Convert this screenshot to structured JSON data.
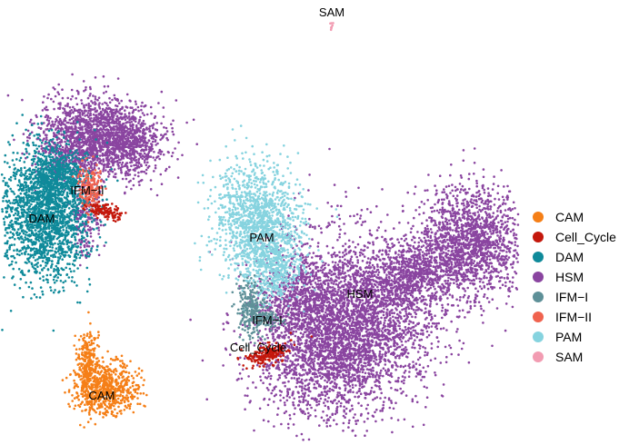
{
  "chart_data": {
    "type": "scatter",
    "title": "",
    "xlabel": "",
    "ylabel": "",
    "axes": "none",
    "grid": false,
    "legend_position": "right",
    "legend": [
      {
        "name": "CAM",
        "color": "#f57f17"
      },
      {
        "name": "Cell_Cycle",
        "color": "#c4180c"
      },
      {
        "name": "DAM",
        "color": "#0f8a9a"
      },
      {
        "name": "HSM",
        "color": "#8a45a0"
      },
      {
        "name": "IFM−I",
        "color": "#5e9098"
      },
      {
        "name": "IFM−II",
        "color": "#f0634f"
      },
      {
        "name": "PAM",
        "color": "#86d3df"
      },
      {
        "name": "SAM",
        "color": "#f29cb2"
      }
    ],
    "cluster_labels": [
      {
        "text": "SAM"
      },
      {
        "text": "IFM−II"
      },
      {
        "text": "DAM"
      },
      {
        "text": "PAM"
      },
      {
        "text": "HSM"
      },
      {
        "text": "IFM−I"
      },
      {
        "text": "Cell_Cycle"
      },
      {
        "text": "CAM"
      }
    ]
  }
}
